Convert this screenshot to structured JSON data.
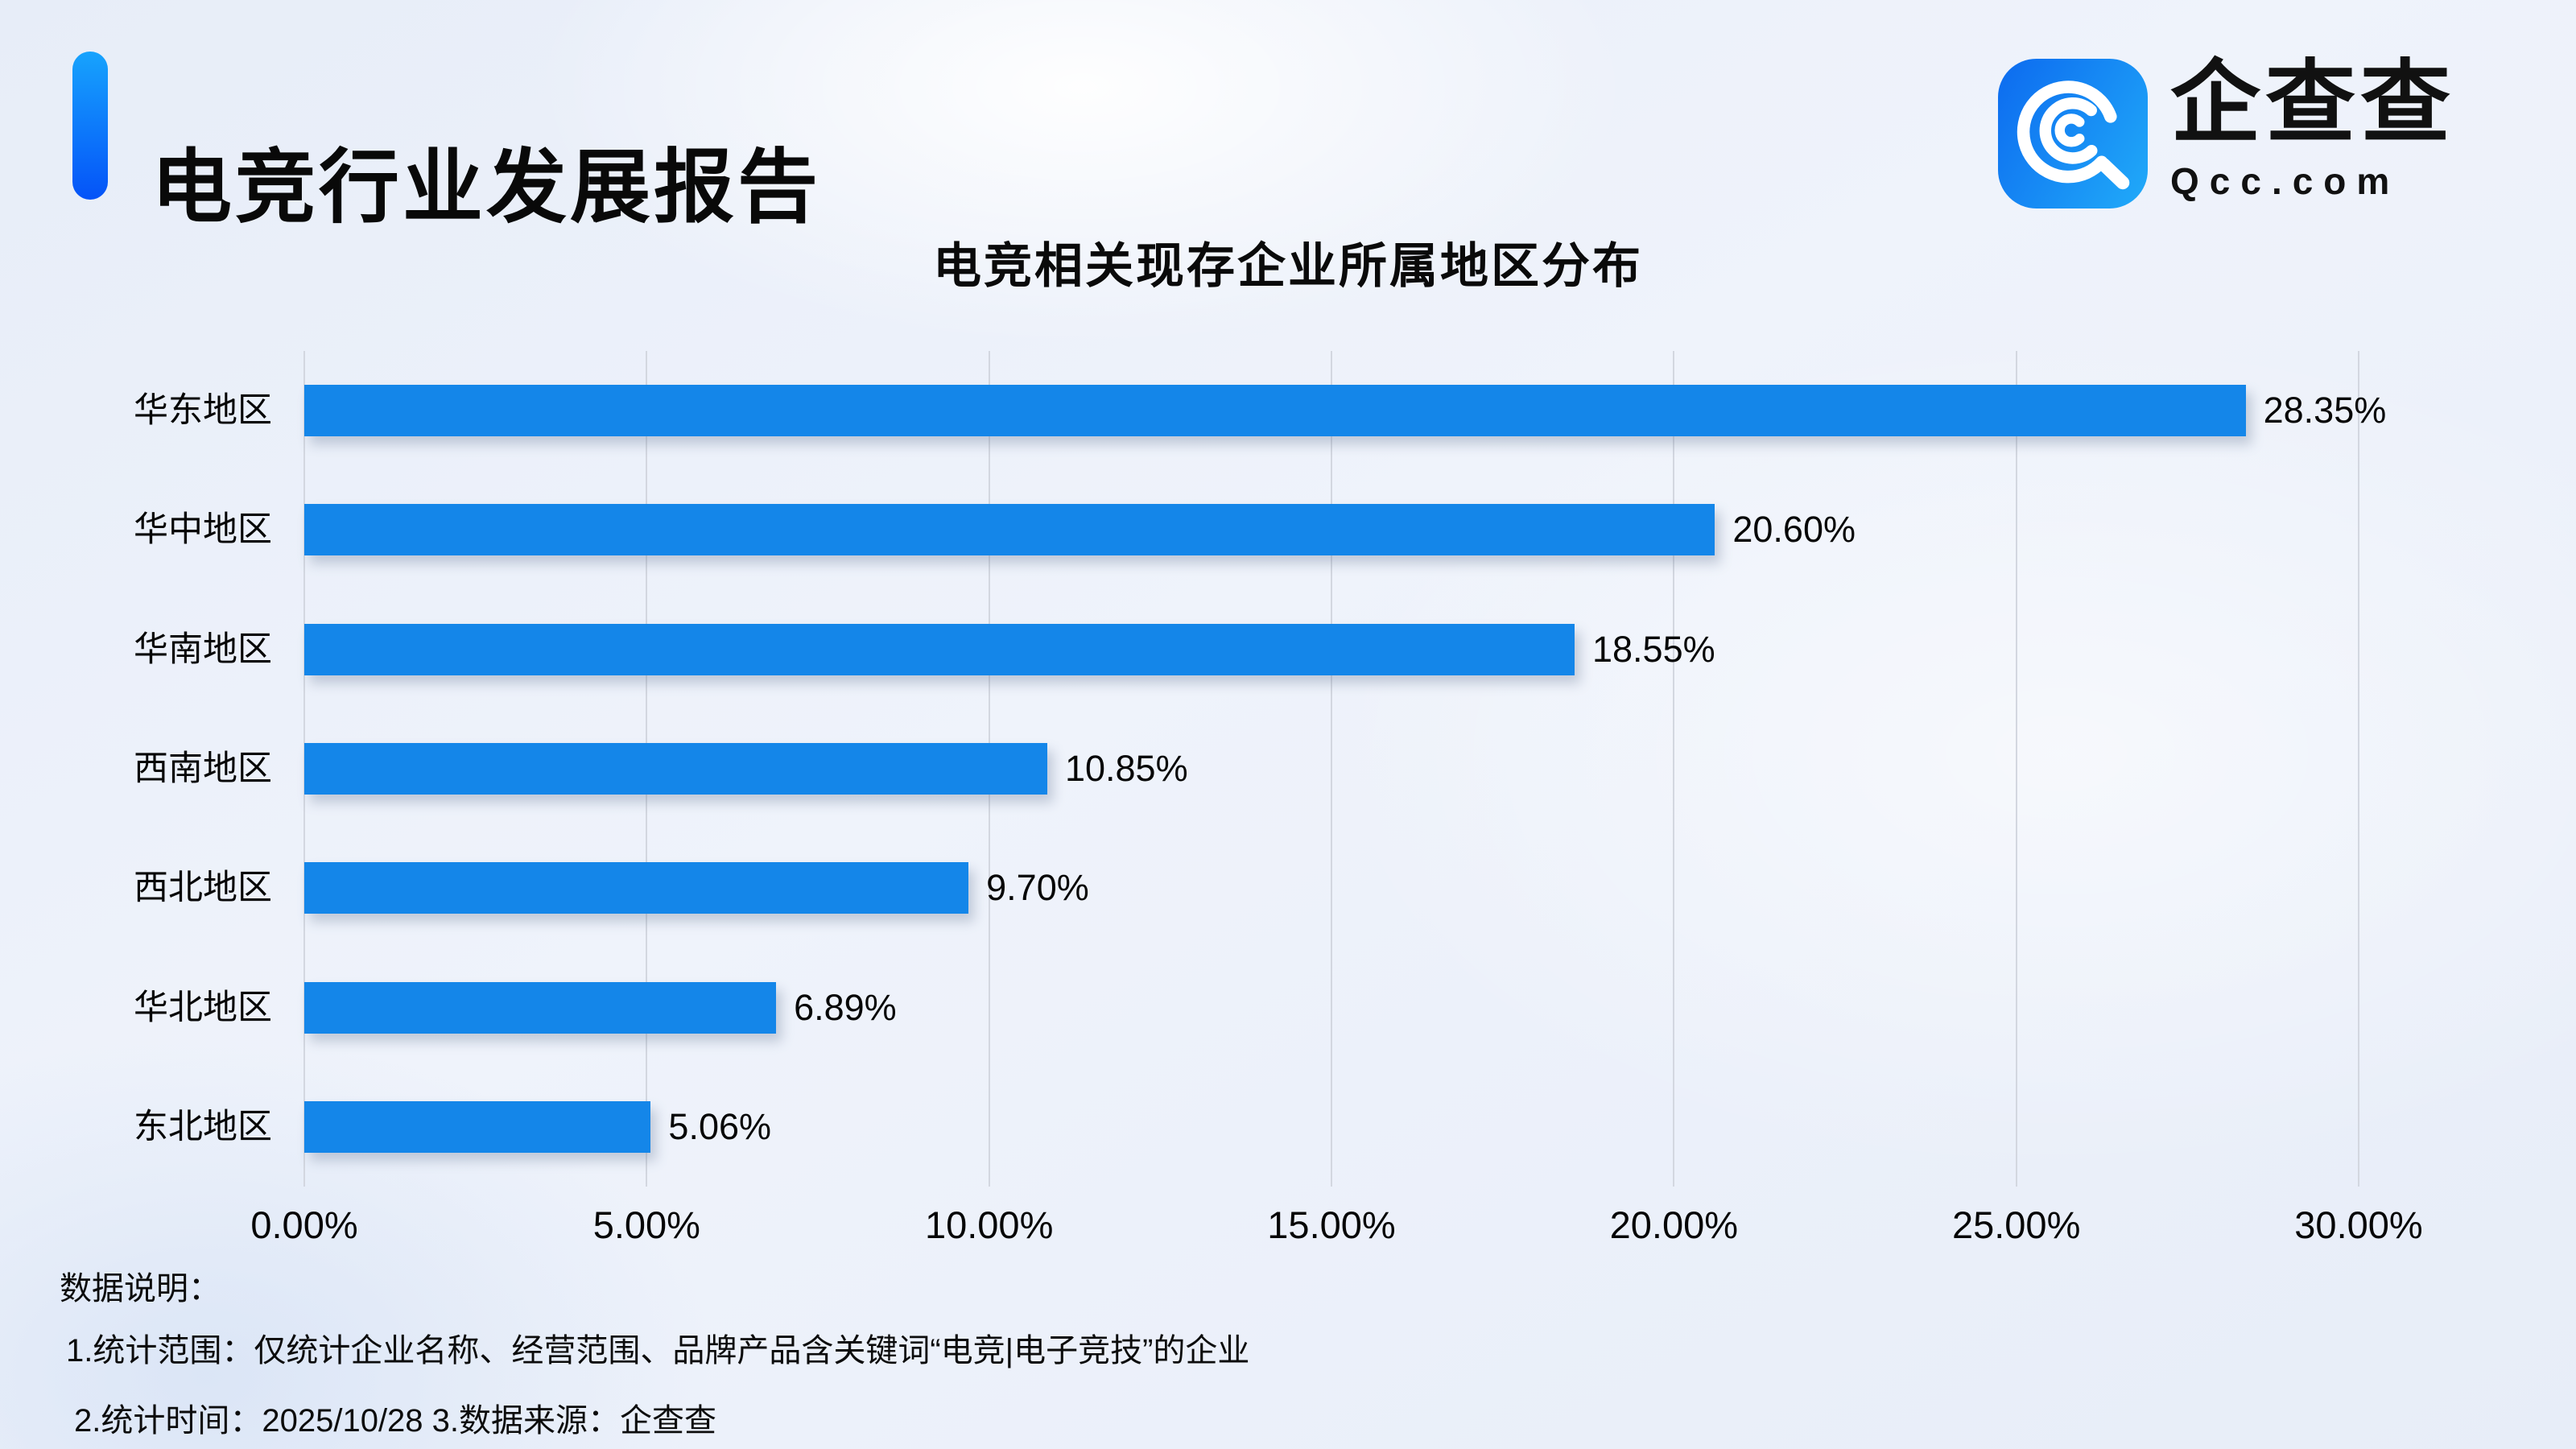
{
  "header": {
    "title": "电竞行业发展报告",
    "logo": {
      "brand": "企查查",
      "domain": "Qcc.com",
      "icon": "qcc-magnifier-icon"
    }
  },
  "chart_data": {
    "type": "bar",
    "orientation": "horizontal",
    "title": "电竞相关现存企业所属地区分布",
    "categories": [
      "华东地区",
      "华中地区",
      "华南地区",
      "西南地区",
      "西北地区",
      "华北地区",
      "东北地区"
    ],
    "values": [
      28.35,
      20.6,
      18.55,
      10.85,
      9.7,
      6.89,
      5.06
    ],
    "value_labels": [
      "28.35%",
      "20.60%",
      "18.55%",
      "10.85%",
      "9.70%",
      "6.89%",
      "5.06%"
    ],
    "xlabel": "",
    "ylabel": "",
    "xlim": [
      0,
      30
    ],
    "x_ticks": [
      "0.00%",
      "5.00%",
      "10.00%",
      "15.00%",
      "20.00%",
      "25.00%",
      "30.00%"
    ],
    "grid": "vertical-only",
    "legend": "none",
    "bar_color": "#1486E9"
  },
  "notes": {
    "heading": "数据说明：",
    "line1": "1.统计范围：仅统计企业名称、经营范围、品牌产品含关键词“电竞|电子竞技”的企业",
    "line2": "2.统计时间：2025/10/28 3.数据来源：企查查"
  },
  "colors": {
    "bar": "#1486E9",
    "accent_top": "#17A3FD",
    "accent_bottom": "#0453F8",
    "logo_left": "#0E6FF0",
    "logo_right": "#1FA6F8",
    "gridline": "#D3D7E0",
    "background": "#EDF1F9",
    "text": "#0B0B0E"
  }
}
